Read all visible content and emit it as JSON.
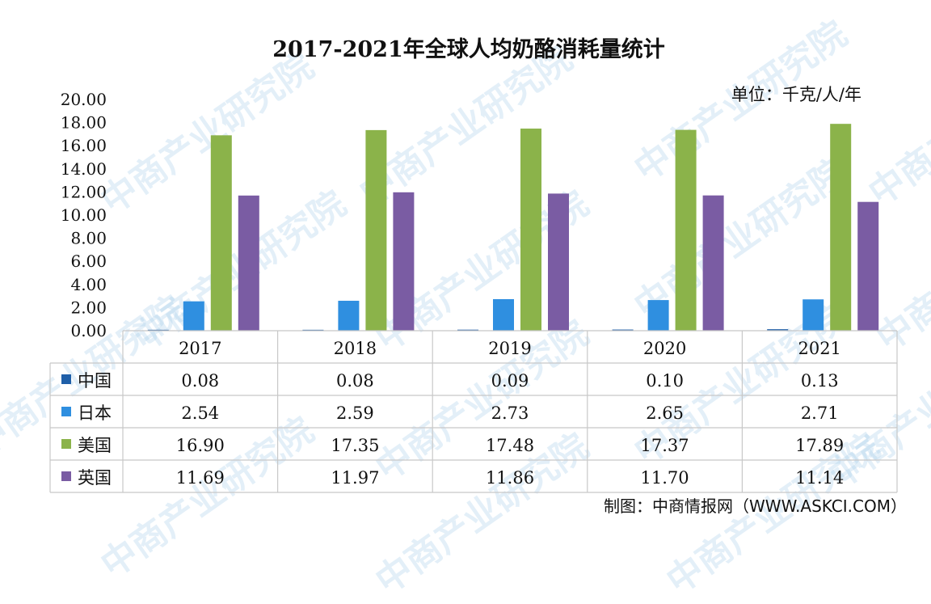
{
  "colors": {
    "中国": "#1f5fa8",
    "日本": "#2f8fe0",
    "美国": "#8bb34a",
    "英国": "#7a5ca3",
    "grid": "#c8c8c8",
    "watermark": "#9ec9e8"
  },
  "watermark_text": "中商产业研究院",
  "footer": "制图：中商情报网（WWW.ASKCI.COM）",
  "chart_data": {
    "type": "bar",
    "title": "2017-2021年全球人均奶酪消耗量统计",
    "unit": "单位：千克/人/年",
    "categories": [
      "2017",
      "2018",
      "2019",
      "2020",
      "2021"
    ],
    "series": [
      {
        "name": "中国",
        "values": [
          0.08,
          0.08,
          0.09,
          0.1,
          0.13
        ]
      },
      {
        "name": "日本",
        "values": [
          2.54,
          2.59,
          2.73,
          2.65,
          2.71
        ]
      },
      {
        "name": "美国",
        "values": [
          16.9,
          17.35,
          17.48,
          17.37,
          17.89
        ]
      },
      {
        "name": "英国",
        "values": [
          11.69,
          11.97,
          11.86,
          11.7,
          11.14
        ]
      }
    ],
    "ylim": [
      0,
      20
    ],
    "yticks": [
      "0.00",
      "2.00",
      "4.00",
      "6.00",
      "8.00",
      "10.00",
      "12.00",
      "14.00",
      "16.00",
      "18.00",
      "20.00"
    ],
    "data_table": true,
    "legend": "in-table"
  }
}
